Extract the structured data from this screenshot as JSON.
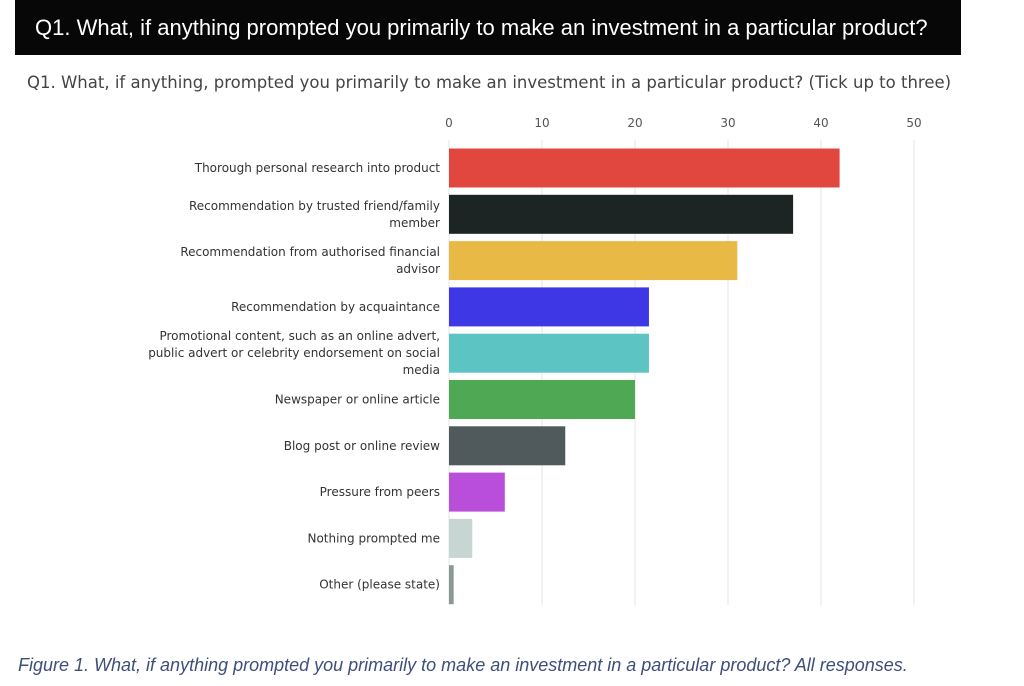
{
  "header": {
    "title": "Q1. What, if anything prompted you primarily to make an investment in a particular product?"
  },
  "chart_data": {
    "type": "bar",
    "orientation": "horizontal",
    "title": "Q1. What, if anything, prompted you primarily to make an investment in a particular product? (Tick up to three)",
    "xlabel": "",
    "ylabel": "",
    "xlim": [
      0,
      50
    ],
    "ticks": [
      0,
      10,
      20,
      30,
      40,
      50
    ],
    "grid": true,
    "axis_position": "top",
    "categories": [
      "Thorough personal research into product",
      "Recommendation by trusted friend/family member",
      "Recommendation from authorised financial advisor",
      "Recommendation by acquaintance",
      "Promotional content, such as an online advert, public advert or celebrity endorsement on social media",
      "Newspaper or online article",
      "Blog post or online review",
      "Pressure from peers",
      "Nothing prompted me",
      "Other (please state)"
    ],
    "category_lines": [
      [
        "Thorough personal research into product"
      ],
      [
        "Recommendation by trusted friend/family",
        "member"
      ],
      [
        "Recommendation from authorised financial",
        "advisor"
      ],
      [
        "Recommendation by acquaintance"
      ],
      [
        "Promotional content, such as an online advert,",
        "public advert or celebrity endorsement on social",
        "media"
      ],
      [
        "Newspaper or online article"
      ],
      [
        "Blog post or online review"
      ],
      [
        "Pressure from peers"
      ],
      [
        "Nothing prompted me"
      ],
      [
        "Other (please state)"
      ]
    ],
    "values": [
      42,
      37,
      31,
      21.5,
      21.5,
      20,
      12.5,
      6,
      2.5,
      0.5
    ],
    "colors": [
      "#e2473f",
      "#1c2424",
      "#e9b945",
      "#3e37e6",
      "#5cc4c2",
      "#4fa854",
      "#50595b",
      "#b84ed9",
      "#c7d6d2",
      "#8a9995"
    ]
  },
  "caption": {
    "text": "Figure 1. What, if anything prompted you primarily to make an investment in a particular product? All responses."
  }
}
